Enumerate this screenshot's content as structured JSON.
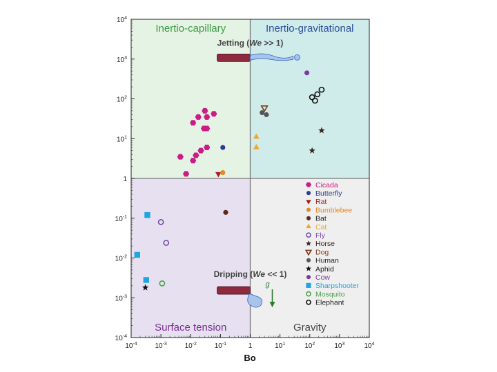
{
  "chart_data": {
    "type": "scatter",
    "x_scale": "log",
    "y_scale": "log",
    "xlim": [
      0.0001,
      10000
    ],
    "ylim": [
      0.0001,
      10000
    ],
    "xlabel": "Bo",
    "ylabel": "",
    "grid": false,
    "legend_position": "right-center",
    "x_ticks": [
      {
        "value": 0.0001,
        "base": "10",
        "exp": "-4"
      },
      {
        "value": 0.001,
        "base": "10",
        "exp": "-3"
      },
      {
        "value": 0.01,
        "base": "10",
        "exp": "-2"
      },
      {
        "value": 0.1,
        "base": "10",
        "exp": "-1"
      },
      {
        "value": 1,
        "base": "1",
        "exp": ""
      },
      {
        "value": 10,
        "base": "10",
        "exp": "1"
      },
      {
        "value": 100,
        "base": "10",
        "exp": "2"
      },
      {
        "value": 1000,
        "base": "10",
        "exp": "3"
      },
      {
        "value": 10000,
        "base": "10",
        "exp": "4"
      }
    ],
    "y_ticks": [
      {
        "value": 0.0001,
        "base": "10",
        "exp": "-4"
      },
      {
        "value": 0.001,
        "base": "10",
        "exp": "-3"
      },
      {
        "value": 0.01,
        "base": "10",
        "exp": "-2"
      },
      {
        "value": 0.1,
        "base": "10",
        "exp": "-1"
      },
      {
        "value": 1,
        "base": "1",
        "exp": ""
      },
      {
        "value": 10,
        "base": "10",
        "exp": "1"
      },
      {
        "value": 100,
        "base": "10",
        "exp": "2"
      },
      {
        "value": 1000,
        "base": "10",
        "exp": "3"
      },
      {
        "value": 10000,
        "base": "10",
        "exp": "4"
      }
    ],
    "regions": [
      {
        "name": "Inertio-capillary",
        "x": [
          0.0001,
          1
        ],
        "y": [
          1,
          10000
        ],
        "fill": "#e4f3e3",
        "label_color": "#3f9a45",
        "anchor": "top"
      },
      {
        "name": "Inertio-gravitational",
        "x": [
          1,
          10000
        ],
        "y": [
          1,
          10000
        ],
        "fill": "#cfeceb",
        "label_color": "#2d4e9c",
        "anchor": "top"
      },
      {
        "name": "Surface tension",
        "x": [
          0.0001,
          1
        ],
        "y": [
          0.0001,
          1
        ],
        "fill": "#e6e0f0",
        "label_color": "#7a2f8e",
        "anchor": "bottom"
      },
      {
        "name": "Gravity",
        "x": [
          1,
          10000
        ],
        "y": [
          0.0001,
          1
        ],
        "fill": "#efefef",
        "label_color": "#444444",
        "anchor": "bottom"
      }
    ],
    "annotations": {
      "jetting": {
        "pre": "Jetting (",
        "we": "We",
        "post": " >> 1)",
        "x": 1,
        "y": 1100
      },
      "dripping": {
        "pre": "Dripping (",
        "we": "We",
        "post": " << 1)",
        "x": 1,
        "y": 0.0015
      },
      "gravity_symbol": "g"
    },
    "series": [
      {
        "name": "Cicada",
        "marker": "hexagon",
        "color": "#cc1a86",
        "points": [
          [
            0.007,
            1.3
          ],
          [
            0.0045,
            3.5
          ],
          [
            0.012,
            2.8
          ],
          [
            0.015,
            3.8
          ],
          [
            0.022,
            5
          ],
          [
            0.035,
            6
          ],
          [
            0.018,
            35
          ],
          [
            0.035,
            35
          ],
          [
            0.06,
            42
          ],
          [
            0.012,
            25
          ],
          [
            0.03,
            50
          ],
          [
            0.028,
            18
          ],
          [
            0.035,
            18
          ]
        ]
      },
      {
        "name": "Butterfly",
        "marker": "circle",
        "color": "#2c3a92",
        "points": [
          [
            0.12,
            6
          ]
        ]
      },
      {
        "name": "Rat",
        "marker": "triangle-down",
        "color": "#b01c1c",
        "points": [
          [
            0.085,
            1.3
          ]
        ]
      },
      {
        "name": "Bumblebee",
        "marker": "circle",
        "color": "#e08a2c",
        "points": [
          [
            0.12,
            1.4
          ]
        ]
      },
      {
        "name": "Bat",
        "marker": "circle",
        "color": "#5a2a1c",
        "points": [
          [
            0.15,
            0.14
          ]
        ]
      },
      {
        "name": "Cat",
        "marker": "triangle-up",
        "color": "#f0a52c",
        "points": [
          [
            1.6,
            11
          ],
          [
            1.6,
            6
          ]
        ]
      },
      {
        "name": "Fly",
        "marker": "open-circle",
        "color": "#7a4aa6",
        "points": [
          [
            0.001,
            0.08
          ],
          [
            0.0015,
            0.024
          ]
        ]
      },
      {
        "name": "Horse",
        "marker": "star",
        "color": "#3a2218",
        "points": [
          [
            250,
            16
          ],
          [
            120,
            5
          ]
        ]
      },
      {
        "name": "Dog",
        "marker": "open-triangle-down",
        "color": "#7a3a1a",
        "points": [
          [
            3,
            60
          ]
        ]
      },
      {
        "name": "Human",
        "marker": "circle",
        "color": "#555555",
        "points": [
          [
            2.5,
            45
          ],
          [
            3.5,
            40
          ]
        ]
      },
      {
        "name": "Aphid",
        "marker": "star",
        "color": "#111111",
        "points": [
          [
            0.0003,
            0.0018
          ]
        ]
      },
      {
        "name": "Cow",
        "marker": "circle",
        "color": "#7a3aa0",
        "points": [
          [
            80,
            450
          ]
        ]
      },
      {
        "name": "Sharpshooter",
        "marker": "square",
        "color": "#1ea6e0",
        "points": [
          [
            0.00035,
            0.12
          ],
          [
            0.00016,
            0.012
          ],
          [
            0.00032,
            0.0028
          ]
        ]
      },
      {
        "name": "Mosquito",
        "marker": "open-circle",
        "color": "#4aa04a",
        "points": [
          [
            0.0011,
            0.0023
          ]
        ]
      },
      {
        "name": "Elephant",
        "marker": "open-circle",
        "color": "#111111",
        "points": [
          [
            120,
            110
          ],
          [
            180,
            130
          ],
          [
            250,
            170
          ],
          [
            150,
            90
          ]
        ]
      }
    ]
  }
}
